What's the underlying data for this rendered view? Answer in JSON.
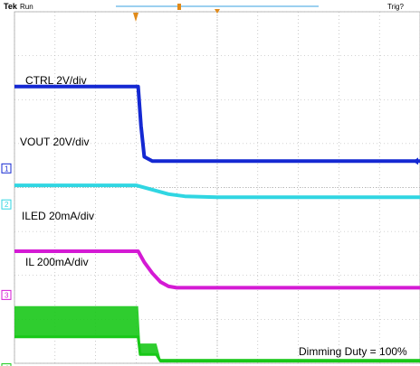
{
  "header": {
    "brand": "Tek",
    "status": "Run",
    "trigger_status": "Trig?"
  },
  "colors": {
    "ch1": "#1428d2",
    "ch2": "#30d6e2",
    "ch3": "#d41ad4",
    "ch4": "#18c818",
    "grid": "#a8a8a8",
    "trigger_marker": "#e08a1a",
    "record_bar": "#3aa0e0"
  },
  "chart_data": {
    "type": "line",
    "title": "",
    "xlabel": "",
    "ylabel": "",
    "x_divisions": 10,
    "y_divisions": 8,
    "grid": true,
    "annotation": "Dimming Duty = 100%",
    "series": [
      {
        "name": "CTRL",
        "label": "CTRL 2V/div",
        "channel": "1",
        "icon": "ch1-ground-marker",
        "x": [
          0,
          3.05,
          3.12,
          3.2,
          3.4,
          3.8,
          10
        ],
        "y": [
          6.3,
          6.3,
          5.4,
          4.7,
          4.6,
          4.6,
          4.6
        ]
      },
      {
        "name": "VOUT",
        "label": "VOUT 20V/div",
        "channel": "2",
        "icon": "ch2-ground-marker",
        "x": [
          0,
          3.0,
          3.4,
          3.8,
          4.2,
          5.0,
          10
        ],
        "y": [
          4.05,
          4.05,
          3.95,
          3.85,
          3.8,
          3.78,
          3.78
        ]
      },
      {
        "name": "ILED",
        "label": "ILED 20mA/div",
        "channel": "3",
        "icon": "ch3-ground-marker",
        "x": [
          0,
          3.05,
          3.2,
          3.4,
          3.6,
          3.8,
          4.0,
          10
        ],
        "y": [
          2.55,
          2.55,
          2.3,
          2.05,
          1.85,
          1.75,
          1.72,
          1.72
        ]
      },
      {
        "name": "IL",
        "label": "IL 200mA/div",
        "channel": "4",
        "icon": "ch4-ground-marker",
        "x": [
          0,
          3.05,
          3.1,
          3.5,
          3.6,
          10
        ],
        "y": [
          0.6,
          0.6,
          0.2,
          0.2,
          0.05,
          0.05
        ],
        "ripple_high": [
          1.3,
          1.3,
          0.45,
          0.45,
          0.1,
          0.1
        ]
      }
    ]
  }
}
